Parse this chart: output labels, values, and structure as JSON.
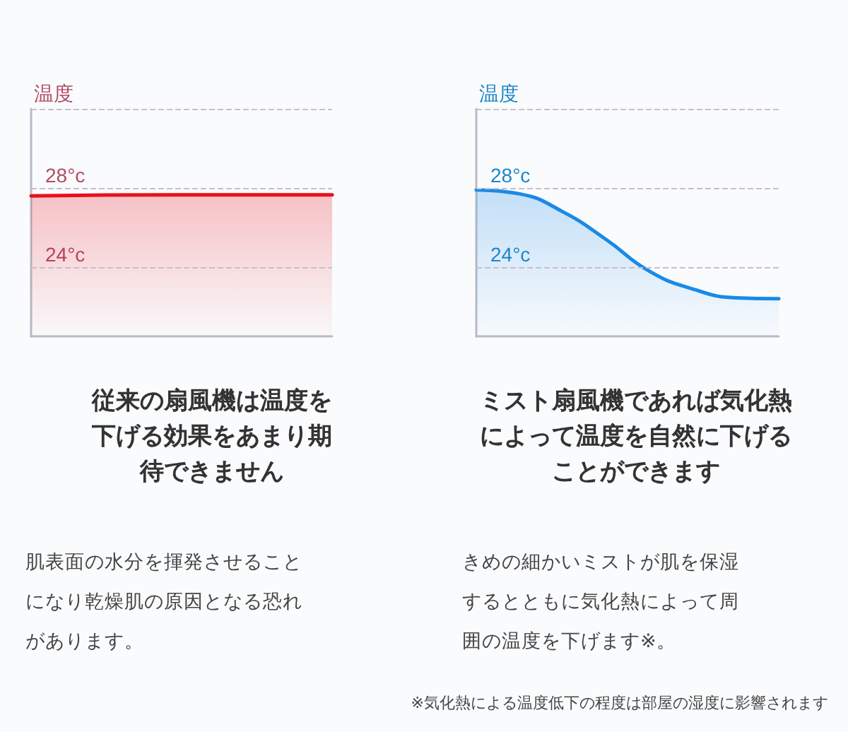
{
  "chart_data": [
    {
      "type": "area",
      "title": "従来の扇風機は温度を下げる効果をあまり期待できません",
      "ylabel": "温度",
      "categories": [
        null,
        null,
        null
      ],
      "series": [
        {
          "color": "#e8101a",
          "values": [
            27.6,
            27.65,
            27.65
          ]
        }
      ],
      "ylim": [
        20.5,
        32
      ],
      "yticks": [
        {
          "value": 24,
          "label": "24°c"
        },
        {
          "value": 28,
          "label": "28°c"
        },
        {
          "value": 32,
          "label": null
        }
      ],
      "grid": "y",
      "marker": "none",
      "line_style": "solid",
      "annotations": [
        "肌表面の水分を揮発させることになり乾燥肌の原因となる恐れがあります。"
      ]
    },
    {
      "type": "area",
      "title": "ミスト扇風機であれば気化熱によって温度を自然に下げることができます",
      "ylabel": "温度",
      "categories": [
        null,
        null,
        null,
        null,
        null,
        null,
        null,
        null
      ],
      "series": [
        {
          "color": "#1a8ae6",
          "values": [
            27.9,
            27.7,
            26.8,
            25.4,
            23.8,
            22.9,
            22.45,
            22.4
          ]
        }
      ],
      "ylim": [
        20.5,
        32
      ],
      "yticks": [
        {
          "value": 24,
          "label": "24°c"
        },
        {
          "value": 28,
          "label": "28°c"
        },
        {
          "value": 32,
          "label": null
        }
      ],
      "grid": "y",
      "marker": "none",
      "line_style": "solid",
      "annotations": [
        "きめの細かいミストが肌を保湿するとともに気化熱によって周囲の温度を下げます※。",
        "※気化熱による温度低下の程度は部屋の湿度に影響されます"
      ]
    }
  ]
}
